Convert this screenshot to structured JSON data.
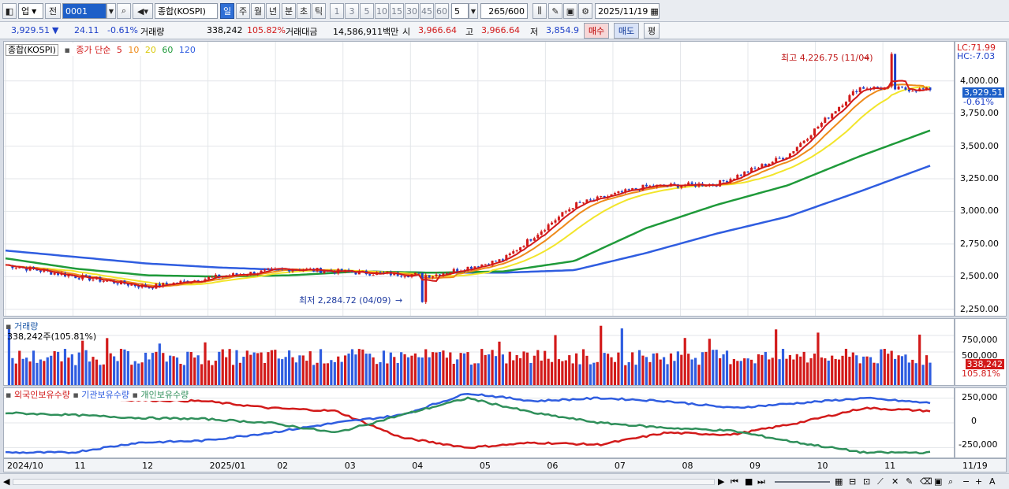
{
  "toolbar": {
    "market": "업",
    "prev_label": "전",
    "code": "0001",
    "index_name": "종합(KOSPI)",
    "periods": [
      "일",
      "주",
      "월",
      "년",
      "분",
      "초",
      "틱"
    ],
    "active_period": "일",
    "intervals": [
      "1",
      "3",
      "5",
      "10",
      "15",
      "30",
      "45",
      "60"
    ],
    "interval_value": "5",
    "count": "265",
    "count_max": "/600",
    "date": "2025/11/19"
  },
  "quote": {
    "price": "3,929.51",
    "change_arrow": "▼",
    "change": "24.11",
    "change_pct": "-0.61%",
    "volume_label": "거래량",
    "volume": "338,242",
    "volume_ratio": "105.82%",
    "amount_label": "거래대금",
    "amount": "14,586,911백만",
    "open_label": "시",
    "open": "3,966.64",
    "high_label": "고",
    "high": "3,966.64",
    "low_label": "저",
    "low": "3,854.9",
    "buy_label": "매수",
    "sell_label": "매도",
    "eval_label": "평"
  },
  "price_panel": {
    "name": "종합(KOSPI)",
    "ma_label": "종가 단순",
    "ma_periods": [
      "5",
      "10",
      "20",
      "60",
      "120"
    ],
    "ma_colors": [
      "#d21a1a",
      "#ee8a1a",
      "#f2e52b",
      "#1f9a3a",
      "#2f5de0"
    ],
    "lc_label": "LC:71.99",
    "hc_label": "HC:-7.03",
    "max_label": "최고 4,226.75 (11/04)",
    "min_label": "최저 2,284.72 (04/09)",
    "last_price": "3,929.51",
    "last_pct": "-0.61%",
    "y_ticks": [
      "4,000.00",
      "3,750.00",
      "3,500.00",
      "3,250.00",
      "3,000.00",
      "2,750.00",
      "2,500.00",
      "2,250.00"
    ]
  },
  "volume_panel": {
    "title": "거래량",
    "info": "338,242주(105.81%)",
    "y_ticks": [
      "750,000",
      "500,000"
    ],
    "last_value": "338,242",
    "last_pct": "105.81%"
  },
  "holdings_panel": {
    "series": [
      "외국인보유수량",
      "기관보유수량",
      "개인보유수량"
    ],
    "colors": [
      "#d21a1a",
      "#2f5de0",
      "#2f8f5a"
    ],
    "y_ticks": [
      "250,000",
      "0",
      "-250,000"
    ]
  },
  "x_axis": {
    "labels": [
      "2024/10",
      "11",
      "12",
      "2025/01",
      "02",
      "03",
      "04",
      "05",
      "06",
      "07",
      "08",
      "09",
      "10",
      "11"
    ],
    "current": "11/19"
  },
  "chart_data": {
    "type": "line",
    "title": "종합(KOSPI)",
    "ylim": [
      2200,
      4300
    ],
    "months": [
      "2024/10",
      "11",
      "12",
      "2025/01",
      "02",
      "03",
      "04",
      "05",
      "06",
      "07",
      "08",
      "09",
      "10",
      "11"
    ],
    "close_monthly_approx": [
      2590,
      2500,
      2420,
      2500,
      2560,
      2530,
      2510,
      2630,
      3050,
      3190,
      3210,
      3430,
      3950,
      3930
    ],
    "ma60_monthly_approx": [
      2640,
      2560,
      2510,
      2500,
      2510,
      2540,
      2530,
      2540,
      2620,
      2870,
      3050,
      3200,
      3420,
      3620
    ],
    "ma120_monthly_approx": [
      2700,
      2650,
      2600,
      2570,
      2550,
      2540,
      2530,
      2530,
      2550,
      2680,
      2830,
      2960,
      3150,
      3350
    ],
    "max": {
      "value": 4226.75,
      "date": "11/04"
    },
    "min": {
      "value": 2284.72,
      "date": "04/09"
    },
    "last": 3929.51
  }
}
